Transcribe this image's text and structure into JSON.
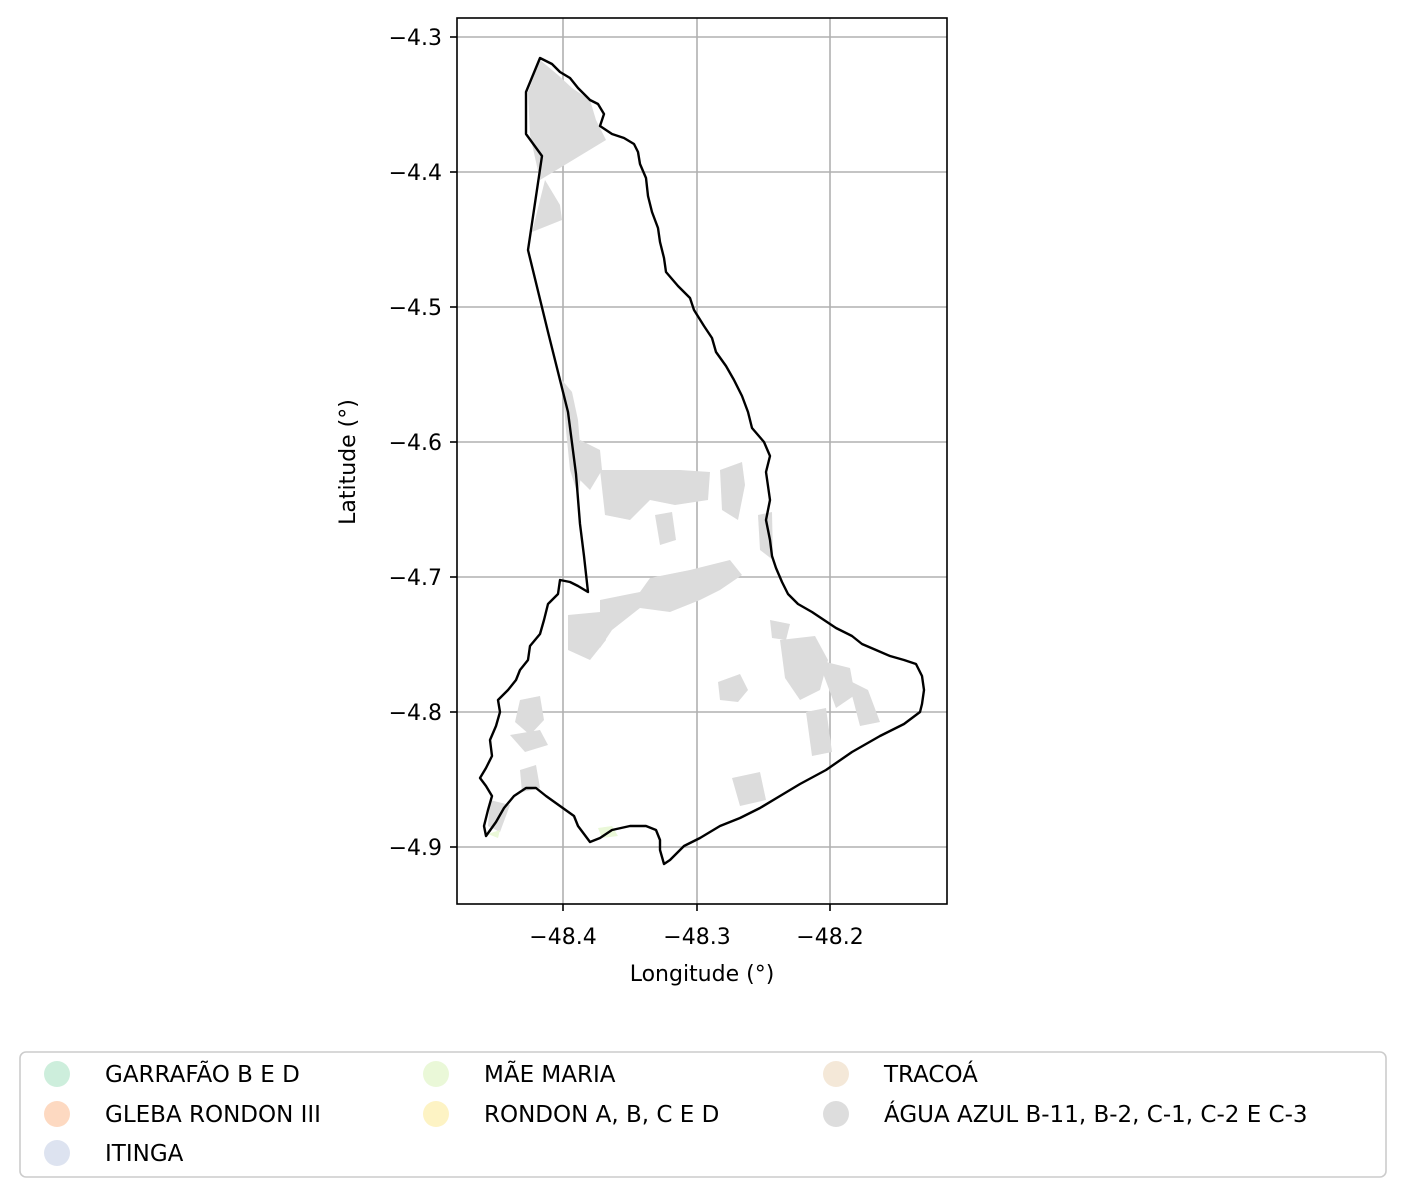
{
  "map": {
    "xlabel": "Longitude (°)",
    "ylabel": "Latitude (°)",
    "x_ticks": [
      {
        "value": -48.4,
        "label": "−48.4"
      },
      {
        "value": -48.3,
        "label": "−48.3"
      },
      {
        "value": -48.2,
        "label": "−48.2"
      }
    ],
    "y_ticks": [
      {
        "value": -4.3,
        "label": "−4.3"
      },
      {
        "value": -4.4,
        "label": "−4.4"
      },
      {
        "value": -4.5,
        "label": "−4.5"
      },
      {
        "value": -4.6,
        "label": "−4.6"
      },
      {
        "value": -4.7,
        "label": "−4.7"
      },
      {
        "value": -4.8,
        "label": "−4.8"
      },
      {
        "value": -4.9,
        "label": "−4.9"
      }
    ],
    "grid": true,
    "boundary_color": "#000000",
    "farm_fill_color": "#dcdcdc"
  },
  "legend": {
    "placement": "bottom",
    "columns": 3,
    "items": [
      {
        "label": "GARRAFÃO B E D",
        "color": "#cdeedc"
      },
      {
        "label": "GLEBA RONDON III",
        "color": "#fdd9c1"
      },
      {
        "label": "ITINGA",
        "color": "#dde3f0"
      },
      {
        "label": "MÃE MARIA",
        "color": "#eaf8d8"
      },
      {
        "label": "RONDON A, B, C E D",
        "color": "#fdf3c4"
      },
      {
        "label": "TRACOÁ",
        "color": "#f4e8d8"
      },
      {
        "label": "ÁGUA AZUL B-11, B-2, C-1, C-2 E C-3",
        "color": "#dddddd"
      }
    ]
  }
}
